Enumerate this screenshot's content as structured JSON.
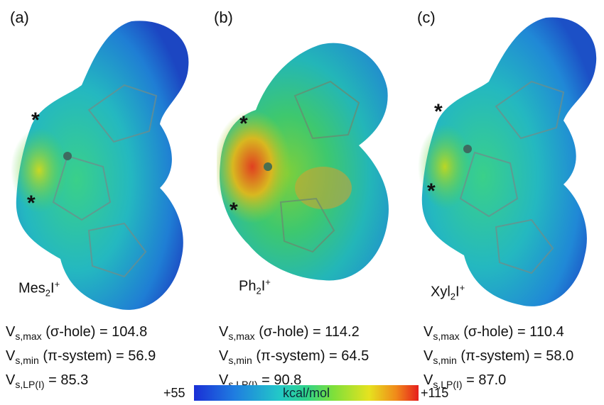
{
  "panels": [
    {
      "label": "(a)",
      "name_main": "Mes",
      "name_sub": "2",
      "name_i": "I",
      "name_sup": "+",
      "vs_max_label": "V",
      "vs_max_sub": "s,max",
      "vs_max_text": " (σ-hole) = 104.8",
      "vs_min_sub": "s,min",
      "vs_min_text": " (π-system) = 56.9",
      "vs_lp_sub": "s,LP(I)",
      "vs_lp_text": " = 85.3"
    },
    {
      "label": "(b)",
      "name_main": "Ph",
      "name_sub": "2",
      "name_i": "I",
      "name_sup": "+",
      "vs_max_label": "V",
      "vs_max_sub": "s,max",
      "vs_max_text": " (σ-hole) = 114.2",
      "vs_min_sub": "s,min",
      "vs_min_text": " (π-system) = 64.5",
      "vs_lp_sub": "s,LP(I)",
      "vs_lp_text": " = 90.8"
    },
    {
      "label": "(c)",
      "name_main": "Xyl",
      "name_sub": "2",
      "name_i": "I",
      "name_sup": "+",
      "vs_max_label": "V",
      "vs_max_sub": "s,max",
      "vs_max_text": " (σ-hole) = 110.4",
      "vs_min_sub": "s,min",
      "vs_min_text": " (π-system) = 58.0",
      "vs_lp_sub": "s,LP(I)",
      "vs_lp_text": " = 87.0"
    }
  ],
  "markers": {
    "star": "*"
  },
  "colorbar": {
    "min_label": "+55",
    "max_label": "+115",
    "unit": "kcal/mol"
  },
  "colors": {
    "surface_blue": "#1f5fd0",
    "surface_cyan": "#2bbcc0",
    "surface_green": "#49d24a",
    "surface_yellow": "#d8d21e",
    "surface_red": "#e23a1e"
  }
}
